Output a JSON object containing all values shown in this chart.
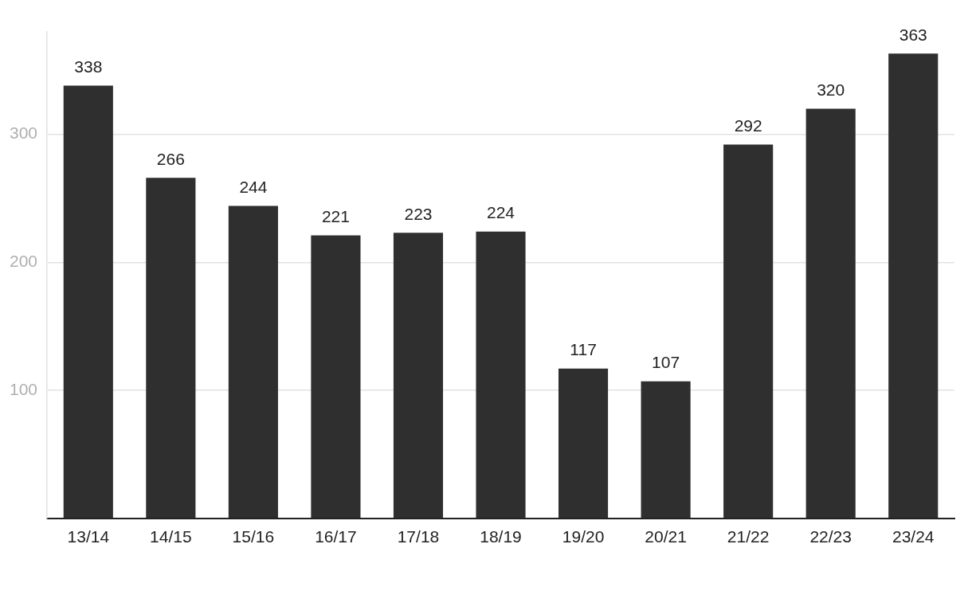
{
  "chart_data": {
    "type": "bar",
    "categories": [
      "13/14",
      "14/15",
      "15/16",
      "16/17",
      "17/18",
      "18/19",
      "19/20",
      "20/21",
      "21/22",
      "22/23",
      "23/24"
    ],
    "values": [
      338,
      266,
      244,
      221,
      223,
      224,
      117,
      107,
      292,
      320,
      363
    ],
    "color": "#2f2f2f",
    "yticks": [
      {
        "value": 0,
        "label": null
      },
      100,
      200,
      300
    ],
    "ylim": [
      0,
      380
    ],
    "grid": "y",
    "legend": false,
    "data_labels": true
  }
}
